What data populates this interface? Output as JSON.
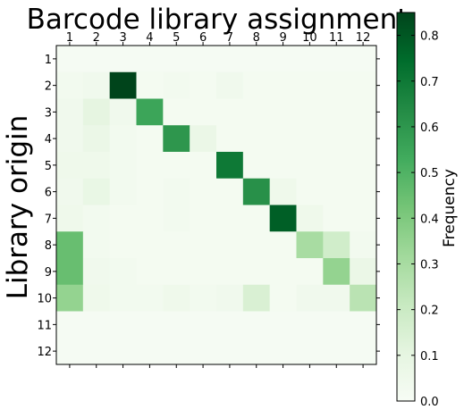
{
  "chart_data": {
    "type": "heatmap",
    "title": "Barcode library assignment",
    "xlabel": "",
    "ylabel": "Library origin",
    "x_categories": [
      "1",
      "2",
      "3",
      "4",
      "5",
      "6",
      "7",
      "8",
      "9",
      "10",
      "11",
      "12"
    ],
    "y_categories": [
      "1",
      "2",
      "3",
      "4",
      "5",
      "6",
      "7",
      "8",
      "9",
      "10",
      "11",
      "12"
    ],
    "values": [
      [
        0.01,
        0.01,
        0.01,
        0.01,
        0.01,
        0.01,
        0.01,
        0.01,
        0.01,
        0.01,
        0.01,
        0.01
      ],
      [
        0.03,
        0.04,
        0.85,
        0.02,
        0.03,
        0.02,
        0.04,
        0.02,
        0.02,
        0.02,
        0.02,
        0.02
      ],
      [
        0.04,
        0.1,
        0.04,
        0.55,
        0.02,
        0.02,
        0.02,
        0.02,
        0.02,
        0.02,
        0.02,
        0.02
      ],
      [
        0.04,
        0.07,
        0.03,
        0.02,
        0.6,
        0.07,
        0.02,
        0.02,
        0.02,
        0.02,
        0.02,
        0.02
      ],
      [
        0.05,
        0.05,
        0.03,
        0.02,
        0.02,
        0.02,
        0.7,
        0.02,
        0.02,
        0.02,
        0.02,
        0.02
      ],
      [
        0.04,
        0.08,
        0.03,
        0.02,
        0.03,
        0.02,
        0.02,
        0.62,
        0.05,
        0.02,
        0.02,
        0.02
      ],
      [
        0.05,
        0.03,
        0.02,
        0.02,
        0.03,
        0.02,
        0.02,
        0.02,
        0.78,
        0.05,
        0.02,
        0.02
      ],
      [
        0.45,
        0.03,
        0.02,
        0.02,
        0.02,
        0.02,
        0.02,
        0.02,
        0.02,
        0.3,
        0.18,
        0.03
      ],
      [
        0.45,
        0.04,
        0.03,
        0.02,
        0.02,
        0.02,
        0.02,
        0.02,
        0.02,
        0.02,
        0.35,
        0.07
      ],
      [
        0.35,
        0.05,
        0.03,
        0.03,
        0.05,
        0.03,
        0.04,
        0.15,
        0.02,
        0.04,
        0.04,
        0.25
      ],
      [
        0.01,
        0.01,
        0.01,
        0.01,
        0.01,
        0.01,
        0.01,
        0.01,
        0.01,
        0.01,
        0.01,
        0.01
      ],
      [
        0.01,
        0.01,
        0.01,
        0.01,
        0.01,
        0.01,
        0.01,
        0.01,
        0.01,
        0.01,
        0.01,
        0.01
      ]
    ],
    "colorbar": {
      "label": "Frequency",
      "range": [
        0.0,
        0.85
      ],
      "ticks": [
        "0.0",
        "0.1",
        "0.2",
        "0.3",
        "0.4",
        "0.5",
        "0.6",
        "0.7",
        "0.8"
      ],
      "colormap": "Greens"
    },
    "x_axis_position": "top",
    "grid": false
  }
}
